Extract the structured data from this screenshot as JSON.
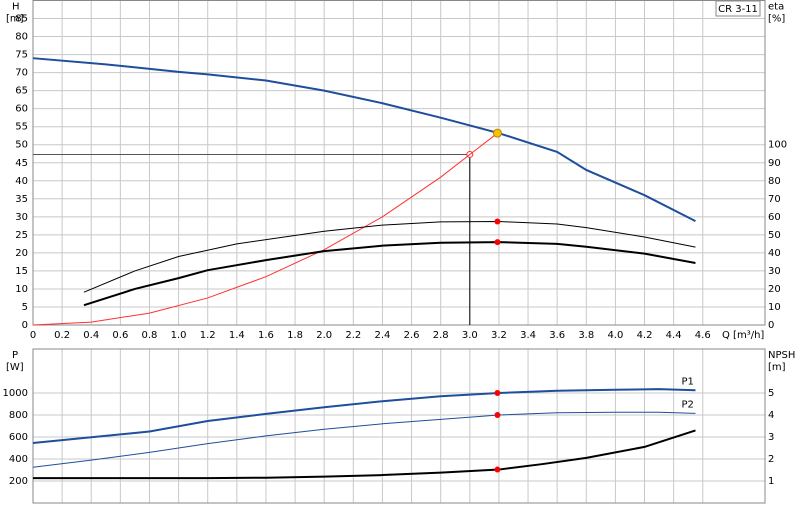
{
  "chart_data": [
    {
      "type": "line",
      "y_label": "H",
      "y_unit": "[m]",
      "y2_label": "eta",
      "y2_unit": "[%]",
      "x_label": "Q [m³/h]",
      "model": "CR 3-11",
      "xlim": [
        0,
        5
      ],
      "ylim": [
        0,
        90
      ],
      "y2lim": [
        0,
        180
      ],
      "grid": true,
      "xticks": [
        0,
        0.2,
        0.4,
        0.6,
        0.8,
        {
          "value": 1,
          "label": "1.0"
        },
        1.2,
        1.4,
        1.6,
        1.8,
        {
          "value": 2,
          "label": "2.0"
        },
        2.2,
        2.4,
        2.6,
        2.8,
        {
          "value": 3,
          "label": "3.0"
        },
        3.2,
        3.4,
        3.6,
        3.8,
        {
          "value": 4,
          "label": "4.0"
        },
        4.2,
        4.4,
        4.6
      ],
      "yticks": [
        0,
        5,
        10,
        15,
        20,
        25,
        30,
        35,
        40,
        45,
        50,
        55,
        60,
        65,
        70,
        75,
        80,
        85
      ],
      "y2ticks": [
        0,
        10,
        20,
        30,
        40,
        50,
        60,
        70,
        80,
        90,
        100
      ],
      "series": [
        {
          "color": "#1f4e9c",
          "line_width": 2,
          "x": [
            0,
            0.5,
            1.0,
            1.2,
            1.6,
            2.0,
            2.4,
            2.8,
            3.2,
            3.6,
            3.8,
            4.2,
            4.55
          ],
          "values": [
            74,
            72.3,
            70.2,
            69.5,
            67.8,
            65,
            61.5,
            57.5,
            53.2,
            48,
            43,
            36,
            28.8
          ]
        },
        {
          "color": "#ff3030",
          "line_width": 1,
          "x": [
            0,
            0.4,
            0.8,
            1.2,
            1.6,
            2.0,
            2.4,
            2.8,
            3.0,
            3.19
          ],
          "values": [
            0,
            0.8,
            3.3,
            7.5,
            13.4,
            20.9,
            30,
            41,
            47.3,
            53.2
          ]
        },
        {
          "color": "#000000",
          "line_width": 1,
          "x": [
            0.35,
            0.7,
            1.0,
            1.4,
            2.0,
            2.4,
            2.8,
            3.2,
            3.6,
            3.8,
            4.2,
            4.55
          ],
          "values": [
            9.1,
            15,
            19,
            22.5,
            26,
            27.7,
            28.6,
            28.7,
            28,
            27,
            24.4,
            21.6
          ]
        },
        {
          "color": "#000000",
          "line_width": 2,
          "x": [
            0.35,
            0.7,
            1.0,
            1.2,
            1.6,
            2.0,
            2.4,
            2.8,
            3.2,
            3.6,
            3.8,
            4.2,
            4.55
          ],
          "values": [
            5.5,
            10,
            13,
            15.2,
            18,
            20.5,
            22,
            22.8,
            23,
            22.5,
            21.7,
            19.8,
            17.2
          ]
        }
      ],
      "operating_point": {
        "x": 3.0,
        "y": 47.3
      },
      "markers": [
        {
          "x": 3.19,
          "y": 53.2,
          "color": "#f5c400"
        },
        {
          "x": 3.19,
          "y": 28.7,
          "color": "#ff0000"
        },
        {
          "x": 3.19,
          "y": 23,
          "color": "#ff0000"
        }
      ]
    },
    {
      "type": "line",
      "y_label": "P",
      "y_unit": "[W]",
      "y2_label": "NPSH",
      "y2_unit": "[m]",
      "xlim": [
        0,
        5
      ],
      "ylim": [
        0,
        1400
      ],
      "y2lim": [
        0,
        7
      ],
      "grid": true,
      "yticks": [
        200,
        400,
        600,
        800,
        1000
      ],
      "y2ticks": [
        1,
        2,
        3,
        4,
        5
      ],
      "series": [
        {
          "name": "P1",
          "color": "#1f4e9c",
          "line_width": 2,
          "x": [
            0,
            0.8,
            1.2,
            1.6,
            2.0,
            2.4,
            2.8,
            3.2,
            3.6,
            4.0,
            4.3,
            4.55
          ],
          "values": [
            545,
            650,
            745,
            810,
            870,
            925,
            970,
            1000,
            1020,
            1030,
            1035,
            1025
          ]
        },
        {
          "name": "P2",
          "color": "#1f4e9c",
          "line_width": 1,
          "x": [
            0,
            0.4,
            0.8,
            1.2,
            1.6,
            2.0,
            2.4,
            2.8,
            3.2,
            3.6,
            4.0,
            4.3,
            4.55
          ],
          "values": [
            325,
            390,
            460,
            540,
            610,
            670,
            720,
            760,
            800,
            820,
            825,
            825,
            815
          ]
        },
        {
          "color": "#000000",
          "line_width": 2,
          "axis": "y2",
          "x": [
            0,
            1.2,
            1.6,
            2.0,
            2.4,
            2.8,
            3.2,
            3.5,
            3.8,
            4.2,
            4.55
          ],
          "values": [
            1.13,
            1.13,
            1.15,
            1.2,
            1.27,
            1.38,
            1.52,
            1.77,
            2.05,
            2.55,
            3.3
          ]
        }
      ],
      "markers": [
        {
          "x": 3.19,
          "y": 1000,
          "color": "#ff0000"
        },
        {
          "x": 3.19,
          "y": 800,
          "color": "#ff0000"
        },
        {
          "x": 3.19,
          "y": 1.52,
          "color": "#ff0000",
          "axis": "y2"
        }
      ]
    }
  ]
}
